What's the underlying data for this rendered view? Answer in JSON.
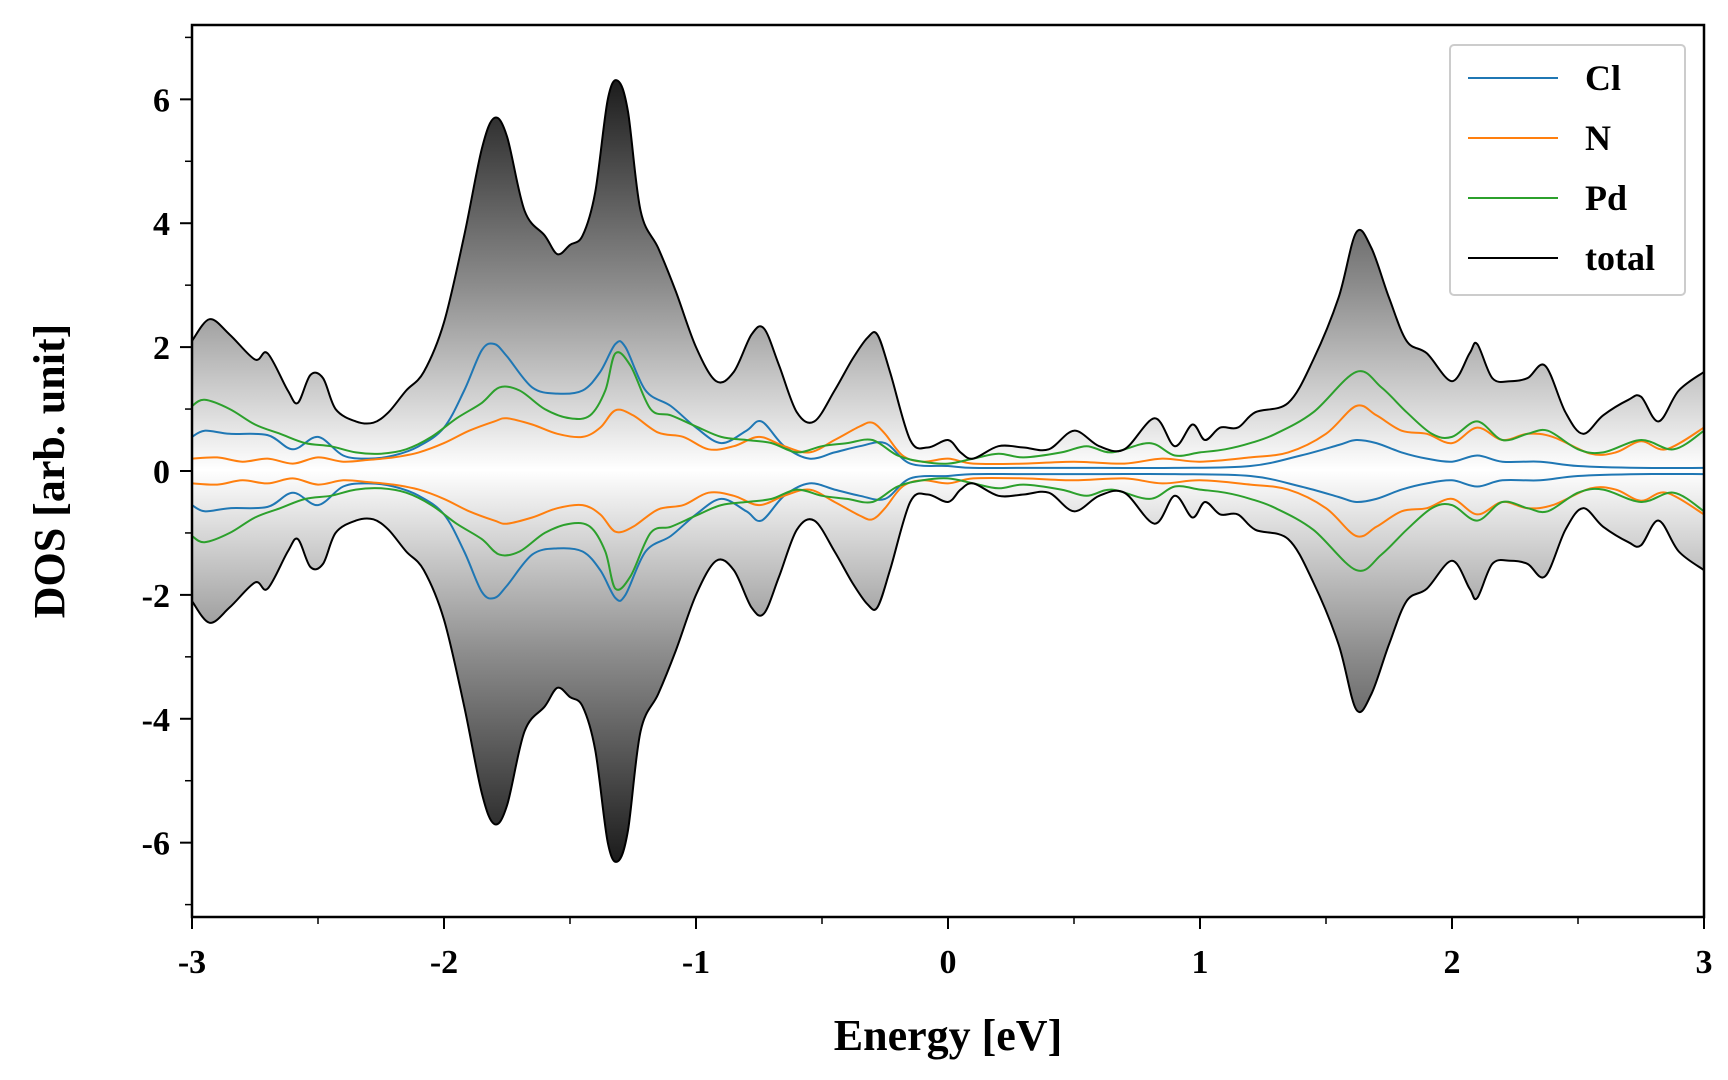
{
  "chart_data": {
    "type": "area",
    "title": "",
    "xlabel": "Energy [eV]",
    "ylabel": "DOS [arb. unit]",
    "xlim": [
      -3,
      3
    ],
    "ylim": [
      -7.2,
      7.2
    ],
    "xticks": [
      -3,
      -2,
      -1,
      0,
      1,
      2,
      3
    ],
    "xtick_labels": [
      "-3",
      "-2",
      "-1",
      "0",
      "1",
      "2",
      "3"
    ],
    "yticks": [
      -6,
      -4,
      -2,
      0,
      2,
      4,
      6
    ],
    "ytick_labels": [
      "-6",
      "-4",
      "-2",
      "0",
      "2",
      "4",
      "6"
    ],
    "legend_position": "top-right",
    "symmetric_spin": true,
    "series": [
      {
        "name": "Cl",
        "color": "#1f77b4",
        "fill": "blue-gradient",
        "points": [
          [
            -3,
            0.55
          ],
          [
            -2.95,
            0.65
          ],
          [
            -2.85,
            0.6
          ],
          [
            -2.7,
            0.58
          ],
          [
            -2.6,
            0.35
          ],
          [
            -2.5,
            0.55
          ],
          [
            -2.4,
            0.25
          ],
          [
            -2.3,
            0.2
          ],
          [
            -2.2,
            0.25
          ],
          [
            -2.1,
            0.4
          ],
          [
            -2.0,
            0.7
          ],
          [
            -1.92,
            1.3
          ],
          [
            -1.85,
            1.95
          ],
          [
            -1.8,
            2.05
          ],
          [
            -1.75,
            1.85
          ],
          [
            -1.65,
            1.35
          ],
          [
            -1.55,
            1.25
          ],
          [
            -1.45,
            1.3
          ],
          [
            -1.38,
            1.6
          ],
          [
            -1.32,
            2.05
          ],
          [
            -1.28,
            2.0
          ],
          [
            -1.2,
            1.3
          ],
          [
            -1.1,
            1.05
          ],
          [
            -1.0,
            0.7
          ],
          [
            -0.9,
            0.45
          ],
          [
            -0.8,
            0.65
          ],
          [
            -0.74,
            0.8
          ],
          [
            -0.65,
            0.4
          ],
          [
            -0.55,
            0.2
          ],
          [
            -0.45,
            0.3
          ],
          [
            -0.35,
            0.4
          ],
          [
            -0.25,
            0.45
          ],
          [
            -0.15,
            0.12
          ],
          [
            0,
            0.08
          ],
          [
            0.1,
            0.05
          ],
          [
            0.3,
            0.05
          ],
          [
            0.6,
            0.05
          ],
          [
            0.9,
            0.05
          ],
          [
            1.2,
            0.08
          ],
          [
            1.4,
            0.25
          ],
          [
            1.55,
            0.42
          ],
          [
            1.62,
            0.5
          ],
          [
            1.7,
            0.45
          ],
          [
            1.8,
            0.3
          ],
          [
            1.9,
            0.2
          ],
          [
            2.0,
            0.15
          ],
          [
            2.1,
            0.25
          ],
          [
            2.2,
            0.15
          ],
          [
            2.35,
            0.15
          ],
          [
            2.5,
            0.08
          ],
          [
            2.75,
            0.05
          ],
          [
            3.0,
            0.05
          ]
        ]
      },
      {
        "name": "N",
        "color": "#ff7f0e",
        "fill": "orange-gradient",
        "points": [
          [
            -3,
            0.2
          ],
          [
            -2.9,
            0.22
          ],
          [
            -2.8,
            0.15
          ],
          [
            -2.7,
            0.2
          ],
          [
            -2.6,
            0.12
          ],
          [
            -2.5,
            0.22
          ],
          [
            -2.4,
            0.15
          ],
          [
            -2.3,
            0.18
          ],
          [
            -2.2,
            0.22
          ],
          [
            -2.1,
            0.3
          ],
          [
            -2.0,
            0.45
          ],
          [
            -1.9,
            0.65
          ],
          [
            -1.8,
            0.8
          ],
          [
            -1.75,
            0.85
          ],
          [
            -1.65,
            0.75
          ],
          [
            -1.55,
            0.6
          ],
          [
            -1.45,
            0.55
          ],
          [
            -1.38,
            0.7
          ],
          [
            -1.32,
            0.98
          ],
          [
            -1.25,
            0.9
          ],
          [
            -1.15,
            0.62
          ],
          [
            -1.05,
            0.55
          ],
          [
            -0.95,
            0.35
          ],
          [
            -0.85,
            0.4
          ],
          [
            -0.75,
            0.55
          ],
          [
            -0.65,
            0.4
          ],
          [
            -0.55,
            0.3
          ],
          [
            -0.45,
            0.5
          ],
          [
            -0.35,
            0.72
          ],
          [
            -0.3,
            0.78
          ],
          [
            -0.25,
            0.6
          ],
          [
            -0.18,
            0.25
          ],
          [
            -0.1,
            0.15
          ],
          [
            0,
            0.2
          ],
          [
            0.1,
            0.12
          ],
          [
            0.3,
            0.12
          ],
          [
            0.5,
            0.15
          ],
          [
            0.7,
            0.12
          ],
          [
            0.85,
            0.2
          ],
          [
            1.0,
            0.15
          ],
          [
            1.2,
            0.22
          ],
          [
            1.35,
            0.3
          ],
          [
            1.5,
            0.6
          ],
          [
            1.62,
            1.05
          ],
          [
            1.7,
            0.9
          ],
          [
            1.8,
            0.65
          ],
          [
            1.9,
            0.6
          ],
          [
            2.0,
            0.45
          ],
          [
            2.1,
            0.7
          ],
          [
            2.2,
            0.5
          ],
          [
            2.3,
            0.6
          ],
          [
            2.4,
            0.55
          ],
          [
            2.55,
            0.28
          ],
          [
            2.65,
            0.3
          ],
          [
            2.75,
            0.48
          ],
          [
            2.85,
            0.35
          ],
          [
            3.0,
            0.7
          ]
        ]
      },
      {
        "name": "Pd",
        "color": "#2ca02c",
        "fill": "green-gradient",
        "points": [
          [
            -3,
            1.05
          ],
          [
            -2.95,
            1.15
          ],
          [
            -2.85,
            1.0
          ],
          [
            -2.75,
            0.75
          ],
          [
            -2.65,
            0.6
          ],
          [
            -2.55,
            0.45
          ],
          [
            -2.45,
            0.4
          ],
          [
            -2.35,
            0.3
          ],
          [
            -2.25,
            0.28
          ],
          [
            -2.15,
            0.35
          ],
          [
            -2.05,
            0.55
          ],
          [
            -1.95,
            0.85
          ],
          [
            -1.85,
            1.1
          ],
          [
            -1.78,
            1.35
          ],
          [
            -1.7,
            1.3
          ],
          [
            -1.6,
            1.0
          ],
          [
            -1.5,
            0.85
          ],
          [
            -1.42,
            0.9
          ],
          [
            -1.36,
            1.3
          ],
          [
            -1.32,
            1.9
          ],
          [
            -1.26,
            1.7
          ],
          [
            -1.18,
            1.0
          ],
          [
            -1.1,
            0.9
          ],
          [
            -1.0,
            0.72
          ],
          [
            -0.9,
            0.55
          ],
          [
            -0.8,
            0.5
          ],
          [
            -0.7,
            0.45
          ],
          [
            -0.6,
            0.3
          ],
          [
            -0.5,
            0.4
          ],
          [
            -0.4,
            0.45
          ],
          [
            -0.3,
            0.5
          ],
          [
            -0.2,
            0.25
          ],
          [
            -0.1,
            0.15
          ],
          [
            0,
            0.12
          ],
          [
            0.1,
            0.2
          ],
          [
            0.2,
            0.28
          ],
          [
            0.3,
            0.22
          ],
          [
            0.45,
            0.3
          ],
          [
            0.55,
            0.4
          ],
          [
            0.65,
            0.3
          ],
          [
            0.8,
            0.45
          ],
          [
            0.9,
            0.25
          ],
          [
            1.0,
            0.3
          ],
          [
            1.1,
            0.35
          ],
          [
            1.2,
            0.45
          ],
          [
            1.3,
            0.6
          ],
          [
            1.45,
            0.95
          ],
          [
            1.62,
            1.6
          ],
          [
            1.72,
            1.35
          ],
          [
            1.82,
            0.95
          ],
          [
            1.92,
            0.6
          ],
          [
            2.0,
            0.55
          ],
          [
            2.1,
            0.8
          ],
          [
            2.2,
            0.5
          ],
          [
            2.3,
            0.6
          ],
          [
            2.38,
            0.65
          ],
          [
            2.5,
            0.35
          ],
          [
            2.6,
            0.3
          ],
          [
            2.75,
            0.5
          ],
          [
            2.88,
            0.35
          ],
          [
            3.0,
            0.65
          ]
        ]
      },
      {
        "name": "total",
        "color": "#000000",
        "fill": "gray-gradient",
        "points": [
          [
            -3,
            2.1
          ],
          [
            -2.93,
            2.45
          ],
          [
            -2.85,
            2.2
          ],
          [
            -2.75,
            1.8
          ],
          [
            -2.7,
            1.9
          ],
          [
            -2.62,
            1.3
          ],
          [
            -2.58,
            1.1
          ],
          [
            -2.53,
            1.55
          ],
          [
            -2.48,
            1.5
          ],
          [
            -2.43,
            1.0
          ],
          [
            -2.35,
            0.8
          ],
          [
            -2.28,
            0.78
          ],
          [
            -2.22,
            0.95
          ],
          [
            -2.15,
            1.3
          ],
          [
            -2.08,
            1.6
          ],
          [
            -2.0,
            2.4
          ],
          [
            -1.92,
            3.8
          ],
          [
            -1.85,
            5.2
          ],
          [
            -1.8,
            5.7
          ],
          [
            -1.75,
            5.4
          ],
          [
            -1.68,
            4.2
          ],
          [
            -1.6,
            3.8
          ],
          [
            -1.55,
            3.5
          ],
          [
            -1.5,
            3.65
          ],
          [
            -1.45,
            3.8
          ],
          [
            -1.4,
            4.5
          ],
          [
            -1.35,
            6.0
          ],
          [
            -1.31,
            6.3
          ],
          [
            -1.27,
            5.8
          ],
          [
            -1.22,
            4.2
          ],
          [
            -1.15,
            3.6
          ],
          [
            -1.08,
            2.9
          ],
          [
            -1.0,
            2.0
          ],
          [
            -0.92,
            1.45
          ],
          [
            -0.85,
            1.6
          ],
          [
            -0.78,
            2.2
          ],
          [
            -0.73,
            2.3
          ],
          [
            -0.67,
            1.7
          ],
          [
            -0.6,
            0.95
          ],
          [
            -0.53,
            0.8
          ],
          [
            -0.45,
            1.3
          ],
          [
            -0.38,
            1.8
          ],
          [
            -0.32,
            2.15
          ],
          [
            -0.28,
            2.2
          ],
          [
            -0.23,
            1.6
          ],
          [
            -0.15,
            0.5
          ],
          [
            -0.08,
            0.38
          ],
          [
            0,
            0.5
          ],
          [
            0.05,
            0.3
          ],
          [
            0.1,
            0.2
          ],
          [
            0.2,
            0.4
          ],
          [
            0.3,
            0.38
          ],
          [
            0.4,
            0.35
          ],
          [
            0.5,
            0.65
          ],
          [
            0.6,
            0.4
          ],
          [
            0.7,
            0.35
          ],
          [
            0.82,
            0.85
          ],
          [
            0.9,
            0.4
          ],
          [
            0.97,
            0.75
          ],
          [
            1.02,
            0.5
          ],
          [
            1.08,
            0.7
          ],
          [
            1.15,
            0.7
          ],
          [
            1.22,
            0.95
          ],
          [
            1.35,
            1.1
          ],
          [
            1.45,
            1.8
          ],
          [
            1.55,
            2.8
          ],
          [
            1.62,
            3.85
          ],
          [
            1.68,
            3.6
          ],
          [
            1.75,
            2.8
          ],
          [
            1.82,
            2.1
          ],
          [
            1.9,
            1.9
          ],
          [
            2.0,
            1.45
          ],
          [
            2.07,
            1.9
          ],
          [
            2.1,
            2.05
          ],
          [
            2.16,
            1.5
          ],
          [
            2.23,
            1.45
          ],
          [
            2.3,
            1.5
          ],
          [
            2.37,
            1.7
          ],
          [
            2.45,
            0.95
          ],
          [
            2.52,
            0.6
          ],
          [
            2.6,
            0.9
          ],
          [
            2.7,
            1.15
          ],
          [
            2.75,
            1.2
          ],
          [
            2.82,
            0.8
          ],
          [
            2.9,
            1.3
          ],
          [
            3.0,
            1.6
          ]
        ]
      }
    ]
  }
}
